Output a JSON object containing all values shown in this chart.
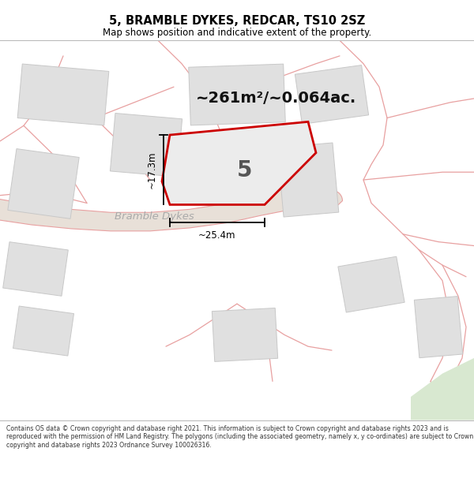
{
  "title": "5, BRAMBLE DYKES, REDCAR, TS10 2SZ",
  "subtitle": "Map shows position and indicative extent of the property.",
  "area_text": "~261m²/~0.064ac.",
  "property_number": "5",
  "dim_width": "~25.4m",
  "dim_height": "~17.3m",
  "road_label": "Bramble Dykes",
  "footer": "Contains OS data © Crown copyright and database right 2021. This information is subject to Crown copyright and database rights 2023 and is reproduced with the permission of HM Land Registry. The polygons (including the associated geometry, namely x, y co-ordinates) are subject to Crown copyright and database rights 2023 Ordnance Survey 100026316.",
  "map_bg": "#ffffff",
  "property_fill": "#e8e8e8",
  "property_outline": "#cc0000",
  "road_outline": "#e8a0a0",
  "road_fill": "#e8e8e8",
  "building_fill": "#e0e0e0",
  "building_outline": "#c8c8c8",
  "pink_line": "#e8a0a0",
  "title_color": "#000000",
  "footer_color": "#333333",
  "dim_color": "#111111",
  "road_label_color": "#aaaaaa"
}
